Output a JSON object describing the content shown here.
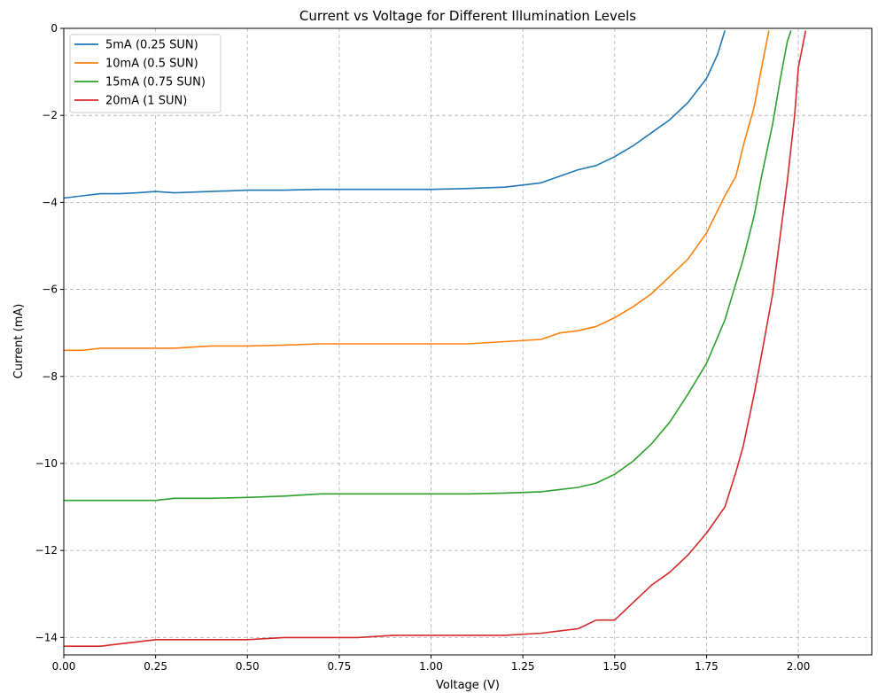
{
  "chart_data": {
    "type": "line",
    "title": "Current vs Voltage for Different Illumination Levels",
    "xlabel": "Voltage (V)",
    "ylabel": "Current (mA)",
    "xlim": [
      0,
      2.2
    ],
    "ylim": [
      -14.4,
      0
    ],
    "xticks": [
      0,
      0.25,
      0.5,
      0.75,
      1.0,
      1.25,
      1.5,
      1.75,
      2.0
    ],
    "xtick_labels": [
      "0.00",
      "0.25",
      "0.50",
      "0.75",
      "1.00",
      "1.25",
      "1.50",
      "1.75",
      "2.00"
    ],
    "yticks": [
      0,
      -2,
      -4,
      -6,
      -8,
      -10,
      -12,
      -14
    ],
    "ytick_labels": [
      "0",
      "−2",
      "−4",
      "−6",
      "−8",
      "−10",
      "−12",
      "−14"
    ],
    "grid": true,
    "legend_position": "top-left",
    "series": [
      {
        "name": "5mA (0.25 SUN)",
        "color": "#1f77b4",
        "points": [
          [
            0.0,
            -3.9
          ],
          [
            0.05,
            -3.85
          ],
          [
            0.1,
            -3.8
          ],
          [
            0.15,
            -3.8
          ],
          [
            0.2,
            -3.78
          ],
          [
            0.25,
            -3.75
          ],
          [
            0.3,
            -3.78
          ],
          [
            0.4,
            -3.75
          ],
          [
            0.5,
            -3.72
          ],
          [
            0.6,
            -3.72
          ],
          [
            0.7,
            -3.7
          ],
          [
            0.8,
            -3.7
          ],
          [
            0.9,
            -3.7
          ],
          [
            1.0,
            -3.7
          ],
          [
            1.1,
            -3.68
          ],
          [
            1.2,
            -3.65
          ],
          [
            1.25,
            -3.6
          ],
          [
            1.3,
            -3.55
          ],
          [
            1.35,
            -3.4
          ],
          [
            1.4,
            -3.25
          ],
          [
            1.45,
            -3.15
          ],
          [
            1.5,
            -2.95
          ],
          [
            1.55,
            -2.7
          ],
          [
            1.6,
            -2.4
          ],
          [
            1.65,
            -2.1
          ],
          [
            1.7,
            -1.7
          ],
          [
            1.75,
            -1.15
          ],
          [
            1.78,
            -0.6
          ],
          [
            1.8,
            -0.05
          ]
        ]
      },
      {
        "name": "10mA (0.5 SUN)",
        "color": "#ff7f0e",
        "points": [
          [
            0.0,
            -7.4
          ],
          [
            0.05,
            -7.4
          ],
          [
            0.1,
            -7.35
          ],
          [
            0.15,
            -7.35
          ],
          [
            0.2,
            -7.35
          ],
          [
            0.25,
            -7.35
          ],
          [
            0.3,
            -7.35
          ],
          [
            0.4,
            -7.3
          ],
          [
            0.5,
            -7.3
          ],
          [
            0.6,
            -7.28
          ],
          [
            0.7,
            -7.25
          ],
          [
            0.8,
            -7.25
          ],
          [
            0.9,
            -7.25
          ],
          [
            1.0,
            -7.25
          ],
          [
            1.1,
            -7.25
          ],
          [
            1.2,
            -7.2
          ],
          [
            1.3,
            -7.15
          ],
          [
            1.35,
            -7.0
          ],
          [
            1.4,
            -6.95
          ],
          [
            1.45,
            -6.85
          ],
          [
            1.5,
            -6.65
          ],
          [
            1.55,
            -6.4
          ],
          [
            1.6,
            -6.1
          ],
          [
            1.65,
            -5.7
          ],
          [
            1.7,
            -5.3
          ],
          [
            1.75,
            -4.7
          ],
          [
            1.8,
            -3.85
          ],
          [
            1.83,
            -3.4
          ],
          [
            1.85,
            -2.7
          ],
          [
            1.88,
            -1.8
          ],
          [
            1.9,
            -0.9
          ],
          [
            1.92,
            -0.05
          ]
        ]
      },
      {
        "name": "15mA (0.75 SUN)",
        "color": "#2ca02c",
        "points": [
          [
            0.0,
            -10.85
          ],
          [
            0.05,
            -10.85
          ],
          [
            0.1,
            -10.85
          ],
          [
            0.15,
            -10.85
          ],
          [
            0.2,
            -10.85
          ],
          [
            0.25,
            -10.85
          ],
          [
            0.3,
            -10.8
          ],
          [
            0.4,
            -10.8
          ],
          [
            0.5,
            -10.78
          ],
          [
            0.6,
            -10.75
          ],
          [
            0.7,
            -10.7
          ],
          [
            0.8,
            -10.7
          ],
          [
            0.9,
            -10.7
          ],
          [
            1.0,
            -10.7
          ],
          [
            1.1,
            -10.7
          ],
          [
            1.2,
            -10.68
          ],
          [
            1.3,
            -10.65
          ],
          [
            1.4,
            -10.55
          ],
          [
            1.45,
            -10.45
          ],
          [
            1.5,
            -10.25
          ],
          [
            1.55,
            -9.95
          ],
          [
            1.6,
            -9.55
          ],
          [
            1.65,
            -9.05
          ],
          [
            1.7,
            -8.4
          ],
          [
            1.75,
            -7.7
          ],
          [
            1.8,
            -6.7
          ],
          [
            1.85,
            -5.3
          ],
          [
            1.88,
            -4.3
          ],
          [
            1.9,
            -3.4
          ],
          [
            1.93,
            -2.2
          ],
          [
            1.95,
            -1.2
          ],
          [
            1.97,
            -0.3
          ],
          [
            1.98,
            -0.05
          ]
        ]
      },
      {
        "name": "20mA (1 SUN)",
        "color": "#d62728",
        "points": [
          [
            0.0,
            -14.2
          ],
          [
            0.05,
            -14.2
          ],
          [
            0.1,
            -14.2
          ],
          [
            0.15,
            -14.15
          ],
          [
            0.2,
            -14.1
          ],
          [
            0.25,
            -14.05
          ],
          [
            0.3,
            -14.05
          ],
          [
            0.4,
            -14.05
          ],
          [
            0.5,
            -14.05
          ],
          [
            0.6,
            -14.0
          ],
          [
            0.7,
            -14.0
          ],
          [
            0.8,
            -14.0
          ],
          [
            0.9,
            -13.95
          ],
          [
            1.0,
            -13.95
          ],
          [
            1.1,
            -13.95
          ],
          [
            1.2,
            -13.95
          ],
          [
            1.3,
            -13.9
          ],
          [
            1.4,
            -13.8
          ],
          [
            1.45,
            -13.6
          ],
          [
            1.5,
            -13.6
          ],
          [
            1.55,
            -13.2
          ],
          [
            1.6,
            -12.8
          ],
          [
            1.65,
            -12.5
          ],
          [
            1.7,
            -12.1
          ],
          [
            1.75,
            -11.6
          ],
          [
            1.8,
            -11.0
          ],
          [
            1.83,
            -10.2
          ],
          [
            1.85,
            -9.6
          ],
          [
            1.88,
            -8.4
          ],
          [
            1.9,
            -7.5
          ],
          [
            1.93,
            -6.1
          ],
          [
            1.95,
            -4.8
          ],
          [
            1.97,
            -3.5
          ],
          [
            1.99,
            -2.0
          ],
          [
            2.0,
            -0.9
          ],
          [
            2.02,
            -0.05
          ]
        ]
      }
    ]
  }
}
